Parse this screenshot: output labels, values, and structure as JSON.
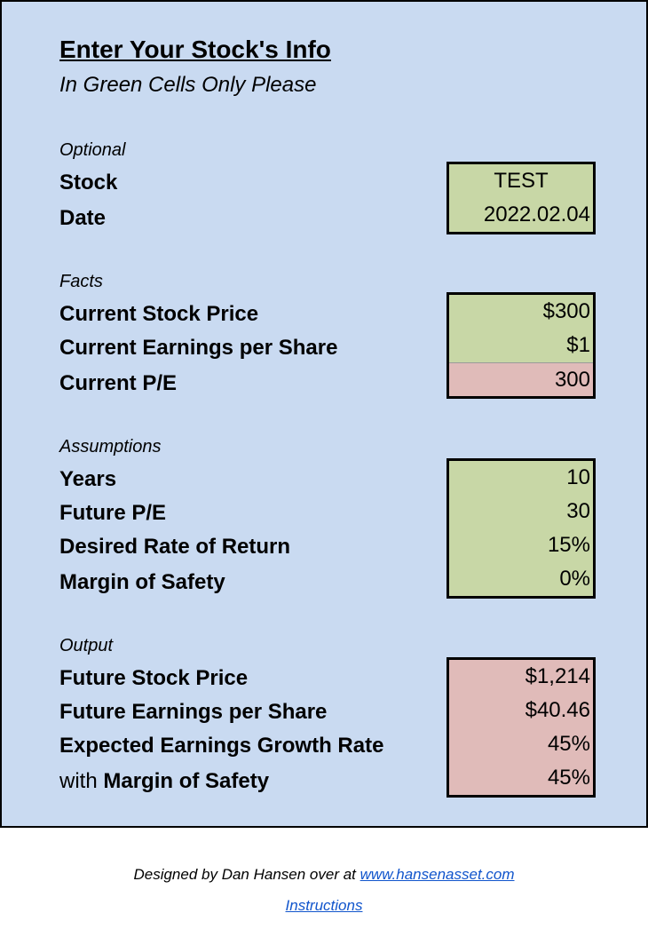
{
  "header": {
    "title": "Enter Your Stock's Info",
    "subtitle": "In Green Cells Only Please"
  },
  "optional": {
    "section": "Optional",
    "stock_label": "Stock",
    "stock_value": "TEST",
    "date_label": "Date",
    "date_value": "2022.02.04"
  },
  "facts": {
    "section": "Facts",
    "price_label": "Current Stock Price",
    "price_value": "$300",
    "eps_label": "Current Earnings per Share",
    "eps_value": "$1",
    "pe_label": "Current P/E",
    "pe_value": "300"
  },
  "assumptions": {
    "section": "Assumptions",
    "years_label": "Years",
    "years_value": "10",
    "future_pe_label": "Future P/E",
    "future_pe_value": "30",
    "return_label": "Desired Rate of Return",
    "return_value": "15%",
    "mos_label": "Margin of Safety",
    "mos_value": "0%"
  },
  "output": {
    "section": "Output",
    "future_price_label": "Future Stock Price",
    "future_price_value": "$1,214",
    "future_eps_label": "Future Earnings per Share",
    "future_eps_value": "$40.46",
    "growth_label": "Expected Earnings Growth Rate",
    "growth_value": "45%",
    "with_prefix": "with",
    "with_mos_label": "Margin of Safety",
    "with_mos_value": "45%"
  },
  "footer": {
    "credit_text": "Designed by Dan Hansen over at",
    "credit_link": "www.hansenasset.com",
    "instructions_link": "Instructions"
  },
  "colors": {
    "sheet_bg": "#c9daf1",
    "input_cell": "#c8d7a6",
    "output_cell": "#e0bbb9",
    "link": "#1155cc"
  }
}
